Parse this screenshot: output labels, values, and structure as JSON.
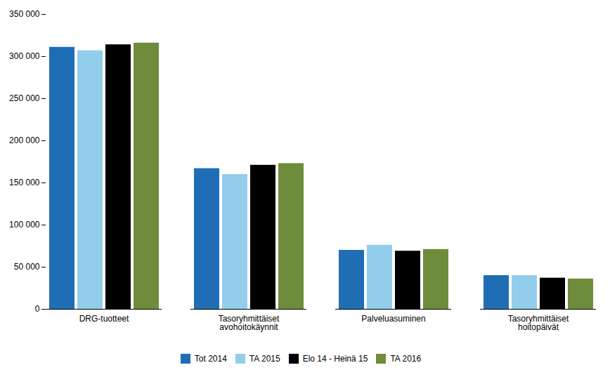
{
  "chart_data": {
    "type": "bar",
    "categories": [
      "DRG-tuotteet",
      "Tasoryhmittäiset\navohoitokäynnit",
      "Palveluasuminen",
      "Tasoryhmittäiset\nhoitopäivät"
    ],
    "series": [
      {
        "name": "Tot 2014",
        "color": "#1F6EB5",
        "values": [
          311000,
          167000,
          70000,
          40000
        ]
      },
      {
        "name": "TA 2015",
        "color": "#92CDEC",
        "values": [
          307000,
          160000,
          76000,
          40000
        ]
      },
      {
        "name": "Elo 14 - Heinä 15",
        "color": "#000000",
        "values": [
          314000,
          171000,
          69000,
          37000
        ]
      },
      {
        "name": "TA 2016",
        "color": "#6E8C3C",
        "values": [
          316000,
          173000,
          71000,
          36000
        ]
      }
    ],
    "ylim": [
      0,
      350000
    ],
    "yticks": [
      0,
      {
        "value": 50000,
        "label": "50 000"
      },
      {
        "value": 100000,
        "label": "100 000"
      },
      {
        "value": 150000,
        "label": "150 000"
      },
      {
        "value": 200000,
        "label": "200 000"
      },
      {
        "value": 250000,
        "label": "250 000"
      },
      {
        "value": 300000,
        "label": "300 000"
      },
      {
        "value": 350000,
        "label": "350 000"
      }
    ],
    "grid": false,
    "legend": "bottom"
  }
}
